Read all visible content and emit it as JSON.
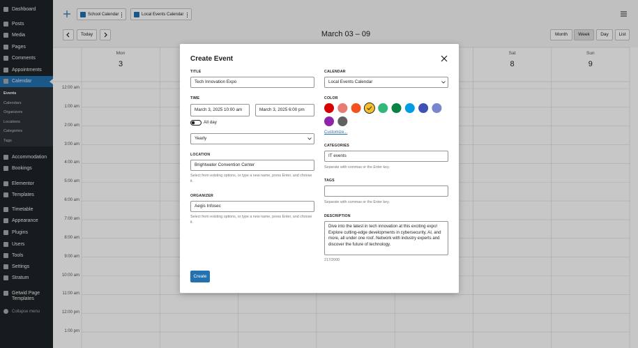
{
  "sidebar": {
    "menu_top": [
      "Dashboard",
      "Posts",
      "Media",
      "Pages",
      "Comments",
      "Appointments",
      "Calendar"
    ],
    "submenu": [
      "Events",
      "Calendars",
      "Organizers",
      "Locations",
      "Categories",
      "Tags"
    ],
    "menu_bottom": [
      "Accommodation",
      "Bookings",
      "Elementor",
      "Templates",
      "Timetable",
      "Appearance",
      "Plugins",
      "Users",
      "Tools",
      "Settings",
      "Stratum",
      "Getwid Page Templates"
    ],
    "collapse": "Collapse menu"
  },
  "toolbar": {
    "calendars": [
      "School Calendar",
      "Local Events Calendar"
    ]
  },
  "nav": {
    "today": "Today",
    "range": "March 03 – 09",
    "views": [
      "Month",
      "Week",
      "Day",
      "List"
    ],
    "active_view": "Week"
  },
  "days": [
    {
      "name": "Mon",
      "date": "3"
    },
    {
      "name": "Sat",
      "date": "8"
    },
    {
      "name": "Sun",
      "date": "9"
    }
  ],
  "times": [
    "12:00 am",
    "1:00 am",
    "2:00 am",
    "3:00 am",
    "4:00 am",
    "5:00 am",
    "6:00 am",
    "7:00 am",
    "8:00 am",
    "9:00 am",
    "10:00 am",
    "11:00 am",
    "12:00 pm",
    "1:00 pm"
  ],
  "modal": {
    "title": "Create Event",
    "fields": {
      "title_label": "TITLE",
      "title_value": "Tech Innovation Expo",
      "time_label": "TIME",
      "start": "March 3, 2025 10:00 am",
      "end": "March 3, 2025 6:00 pm",
      "all_day": "All day",
      "repeat": "Yearly",
      "location_label": "LOCATION",
      "location_value": "Brightwater Convention Center",
      "location_help": "Select from existing options, or type a new name, press Enter, and choose it.",
      "organizer_label": "ORGANIZER",
      "organizer_value": "Aegis Infosec",
      "organizer_help": "Select from existing options, or type a new name, press Enter, and choose it.",
      "calendar_label": "CALENDAR",
      "calendar_value": "Local Events Calendar",
      "color_label": "COLOR",
      "colors": [
        "#d50000",
        "#e67c73",
        "#f4511e",
        "#f6bf26",
        "#33b679",
        "#0b8043",
        "#039be5",
        "#3f51b5",
        "#7986cb",
        "#8e24aa",
        "#616161"
      ],
      "selected_color": "#f6bf26",
      "customize": "Customize...",
      "categories_label": "CATEGORIES",
      "categories_value": "IT events",
      "categories_help": "Separate with commas or the Enter key.",
      "tags_label": "TAGS",
      "tags_help": "Separate with commas or the Enter key.",
      "description_label": "DESCRIPTION",
      "description_value": "Dive into the latest in tech innovation at this exciting expo! Explore cutting-edge developments in cybersecurity, AI, and more, all under one roof. Network with industry experts and discover the future of technology.",
      "char_count": "217/2000"
    },
    "submit": "Create"
  }
}
